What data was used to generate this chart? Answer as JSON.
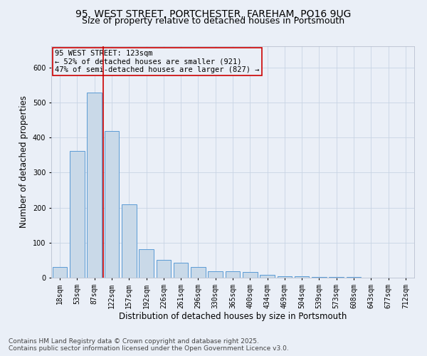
{
  "title_line1": "95, WEST STREET, PORTCHESTER, FAREHAM, PO16 9UG",
  "title_line2": "Size of property relative to detached houses in Portsmouth",
  "xlabel": "Distribution of detached houses by size in Portsmouth",
  "ylabel": "Number of detached properties",
  "categories": [
    "18sqm",
    "53sqm",
    "87sqm",
    "122sqm",
    "157sqm",
    "192sqm",
    "226sqm",
    "261sqm",
    "296sqm",
    "330sqm",
    "365sqm",
    "400sqm",
    "434sqm",
    "469sqm",
    "504sqm",
    "539sqm",
    "573sqm",
    "608sqm",
    "643sqm",
    "677sqm",
    "712sqm"
  ],
  "values": [
    30,
    362,
    527,
    418,
    210,
    82,
    50,
    42,
    30,
    18,
    18,
    16,
    8,
    5,
    4,
    3,
    2,
    2,
    1,
    0,
    1
  ],
  "bar_color": "#c9d9e8",
  "bar_edge_color": "#5b9bd5",
  "grid_color": "#c8d4e4",
  "background_color": "#eaeff7",
  "vline_color": "#cc0000",
  "vline_index": 3,
  "annotation_text": "95 WEST STREET: 123sqm\n← 52% of detached houses are smaller (921)\n47% of semi-detached houses are larger (827) →",
  "annotation_box_edgecolor": "#cc0000",
  "footer_line1": "Contains HM Land Registry data © Crown copyright and database right 2025.",
  "footer_line2": "Contains public sector information licensed under the Open Government Licence v3.0.",
  "ylim": [
    0,
    660
  ],
  "yticks": [
    0,
    100,
    200,
    300,
    400,
    500,
    600
  ],
  "title_fontsize": 10,
  "subtitle_fontsize": 9,
  "axis_label_fontsize": 8.5,
  "tick_fontsize": 7,
  "annot_fontsize": 7.5,
  "footer_fontsize": 6.5
}
